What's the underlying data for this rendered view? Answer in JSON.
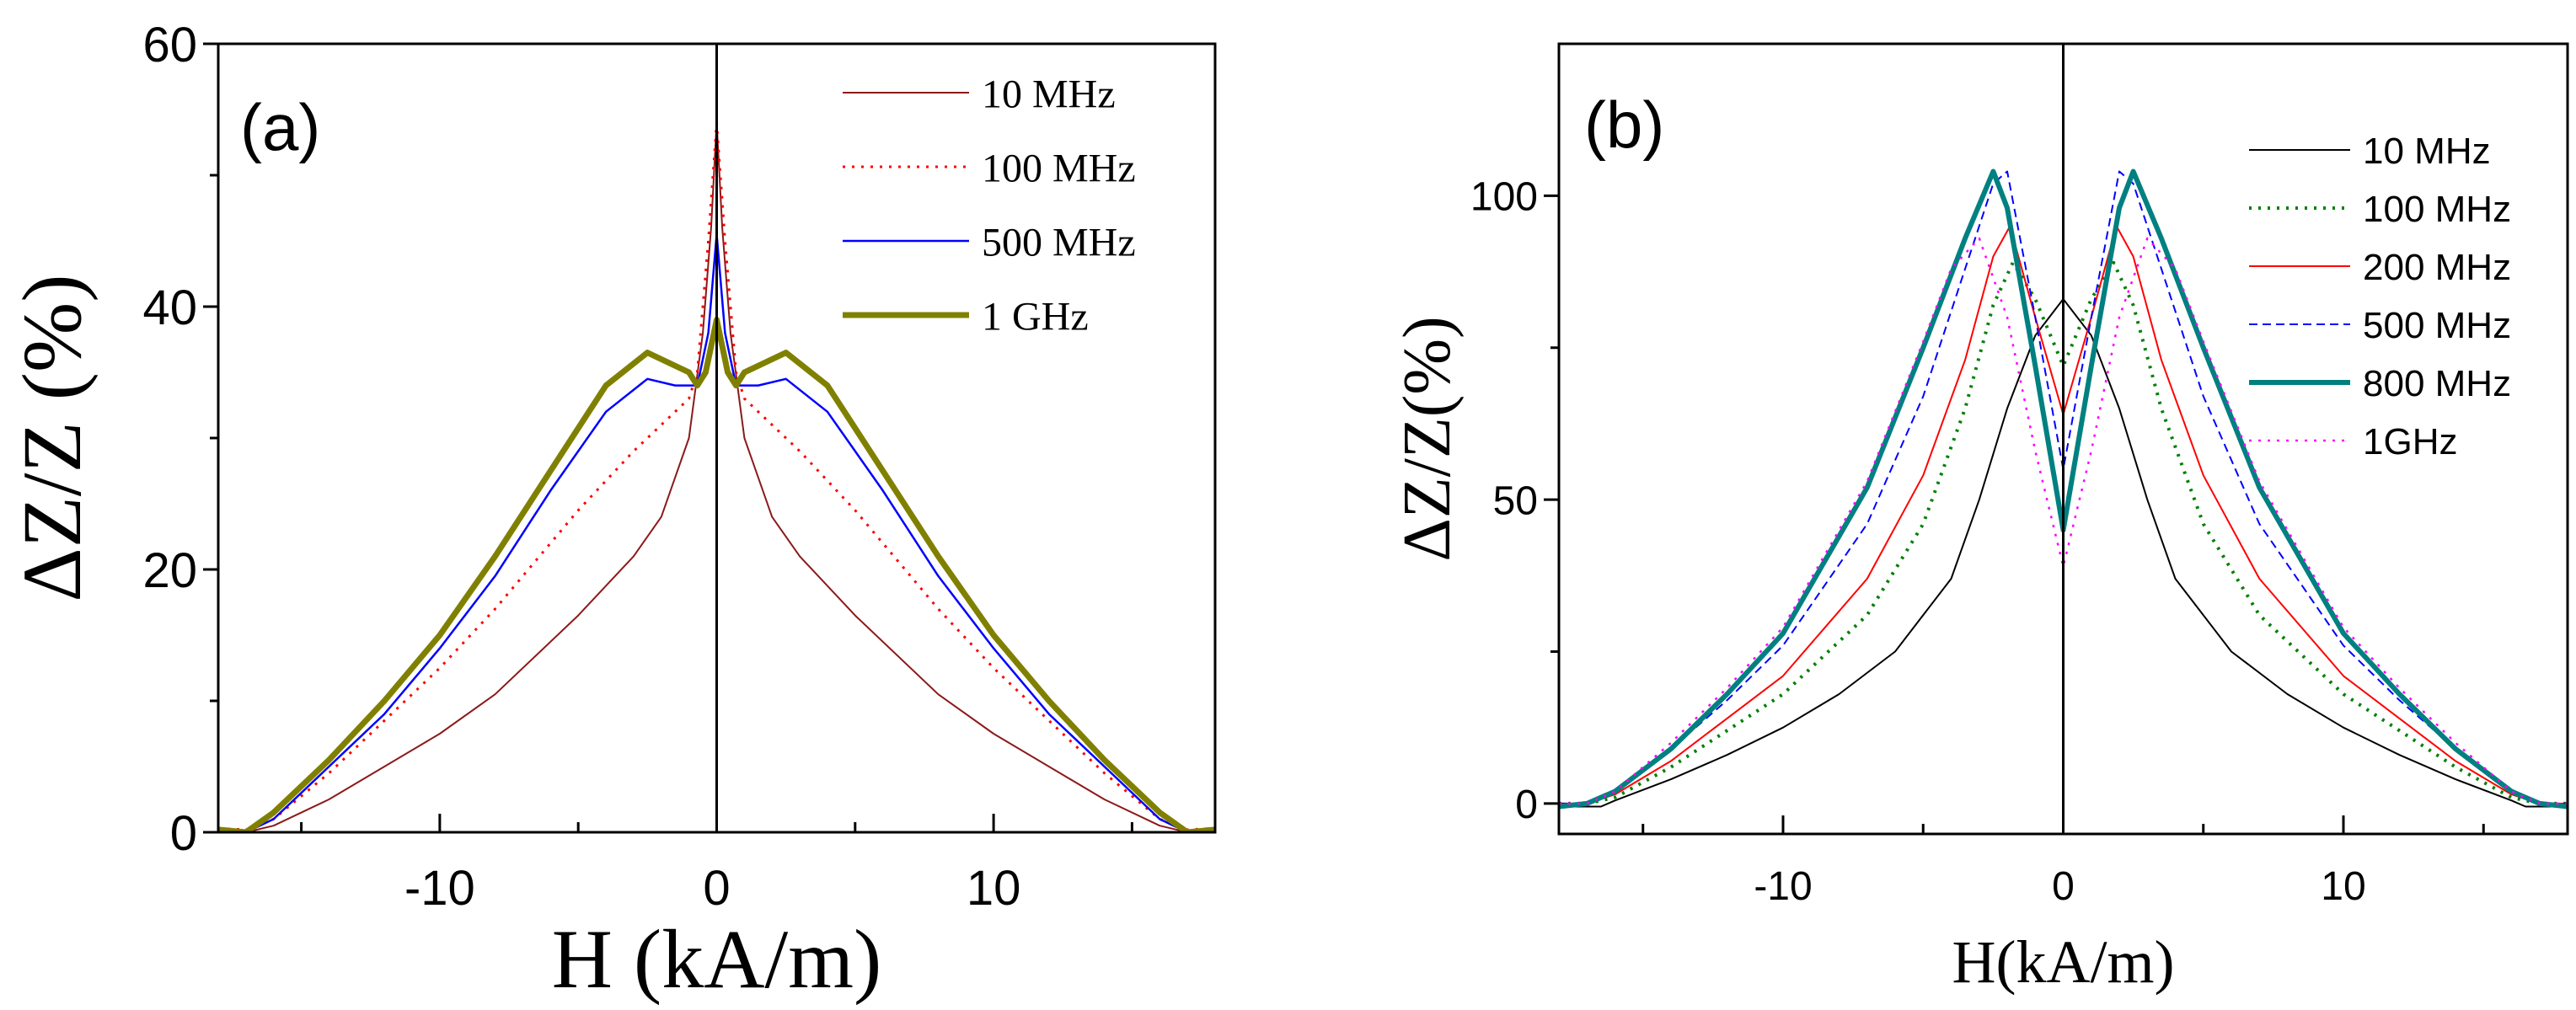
{
  "chart_data": [
    {
      "type": "line",
      "panel_label": "(a)",
      "xlabel": "H (kA/m)",
      "ylabel": "ΔZ/Z (%)",
      "xlim": [
        -18,
        18
      ],
      "ylim": [
        0,
        60
      ],
      "xticks": [
        -10,
        0,
        10
      ],
      "xtick_labels": [
        "-10",
        "0",
        "10"
      ],
      "xminor": [
        -15,
        -5,
        5,
        15
      ],
      "yticks": [
        0,
        20,
        40,
        60
      ],
      "ytick_labels": [
        "0",
        "20",
        "40",
        "60"
      ],
      "yminor": [
        10,
        30,
        50
      ],
      "legend_position": "top-right",
      "grid": false,
      "symmetric": true,
      "series": [
        {
          "name": "10 MHz",
          "color": "#8b1a1a",
          "style": "solid",
          "width": 2,
          "x": [
            0,
            0.2,
            0.5,
            1,
            2,
            3,
            5,
            8,
            10,
            12,
            14,
            16,
            17,
            18
          ],
          "y": [
            54,
            46,
            38,
            30,
            24,
            21,
            16.5,
            10.5,
            7.5,
            5,
            2.5,
            0.5,
            0,
            0
          ]
        },
        {
          "name": "100 MHz",
          "color": "#ff0000",
          "style": "dotted",
          "width": 3,
          "x": [
            0,
            0.3,
            0.7,
            1,
            3,
            5,
            8,
            10,
            12,
            14,
            16,
            17,
            18
          ],
          "y": [
            54,
            45,
            35,
            33,
            29,
            24.5,
            17,
            12.5,
            8.5,
            4.5,
            1,
            0.2,
            0.3
          ]
        },
        {
          "name": "500 MHz",
          "color": "#0000ff",
          "style": "solid",
          "width": 2.5,
          "x": [
            0,
            0.3,
            0.7,
            1.5,
            2.5,
            4,
            6,
            8,
            10,
            12,
            14,
            16,
            17,
            18
          ],
          "y": [
            45.5,
            38,
            34,
            34,
            34.5,
            32,
            26,
            19.5,
            14,
            9,
            5,
            1,
            0,
            0
          ]
        },
        {
          "name": "1 GHz",
          "color": "#808000",
          "style": "solid",
          "width": 7,
          "x": [
            0,
            0.4,
            0.7,
            1,
            2.5,
            4,
            6,
            8,
            10,
            12,
            14,
            16,
            17,
            18
          ],
          "y": [
            39,
            35,
            34,
            35,
            36.5,
            34,
            27.5,
            21,
            15,
            10,
            5.5,
            1.5,
            0,
            0.2
          ]
        }
      ]
    },
    {
      "type": "line",
      "panel_label": "(b)",
      "xlabel": "H(kA/m)",
      "ylabel": "ΔZ/Z(%)",
      "xlim": [
        -18,
        18
      ],
      "ylim": [
        -5,
        125
      ],
      "xticks": [
        -10,
        0,
        10
      ],
      "xtick_labels": [
        "-10",
        "0",
        "10"
      ],
      "xminor": [
        -15,
        -5,
        5,
        15
      ],
      "yticks": [
        0,
        50,
        100
      ],
      "ytick_labels": [
        "0",
        "50",
        "100"
      ],
      "yminor": [
        25,
        75
      ],
      "legend_position": "top-right",
      "grid": false,
      "symmetric": true,
      "series": [
        {
          "name": "10 MHz",
          "color": "#000000",
          "style": "solid",
          "width": 2,
          "x": [
            0,
            1,
            2,
            3,
            4,
            6,
            8,
            10,
            12,
            14,
            16,
            16.5,
            18
          ],
          "y": [
            83,
            77,
            65,
            50,
            37,
            25,
            18,
            12.5,
            8,
            4,
            0.5,
            -0.5,
            -0.5
          ]
        },
        {
          "name": "100 MHz",
          "color": "#008000",
          "style": "dotted",
          "width": 4,
          "x": [
            0,
            1,
            1.8,
            2.5,
            3.5,
            5,
            7,
            10,
            12,
            14,
            16,
            17,
            18
          ],
          "y": [
            72,
            83,
            89,
            82,
            65,
            46,
            31,
            18,
            12,
            6,
            1,
            0,
            0
          ]
        },
        {
          "name": "200 MHz",
          "color": "#ff0000",
          "style": "solid",
          "width": 2,
          "x": [
            0,
            1,
            1.9,
            2.5,
            3.5,
            5,
            7,
            10,
            12,
            14,
            16,
            17,
            18
          ],
          "y": [
            64,
            80,
            95,
            90,
            73,
            54,
            37,
            21,
            14,
            7,
            1.5,
            0,
            0
          ]
        },
        {
          "name": "500 MHz",
          "color": "#0000ff",
          "style": "dashed",
          "width": 2,
          "x": [
            0,
            1,
            2,
            2.5,
            3.5,
            5,
            7,
            10,
            12,
            14,
            16,
            17,
            18
          ],
          "y": [
            55,
            80,
            104,
            102,
            88,
            67,
            46,
            26,
            17,
            9,
            2,
            0,
            0
          ]
        },
        {
          "name": "800 MHz",
          "color": "#008080",
          "style": "solid",
          "width": 6,
          "x": [
            0,
            1,
            2,
            2.5,
            3.5,
            5,
            7,
            10,
            12,
            14,
            16,
            17,
            18
          ],
          "y": [
            45,
            72,
            98,
            104,
            93,
            75,
            52,
            28,
            18,
            9,
            2,
            0,
            -0.5
          ]
        },
        {
          "name": "1GHz",
          "color": "#ff00ff",
          "style": "dotted",
          "width": 2.5,
          "x": [
            0,
            1,
            2,
            3,
            4,
            5,
            7,
            10,
            12,
            14,
            16,
            17,
            18
          ],
          "y": [
            39,
            58,
            80,
            93,
            88,
            76,
            53,
            29,
            19,
            10,
            2,
            0,
            0
          ]
        }
      ]
    }
  ]
}
